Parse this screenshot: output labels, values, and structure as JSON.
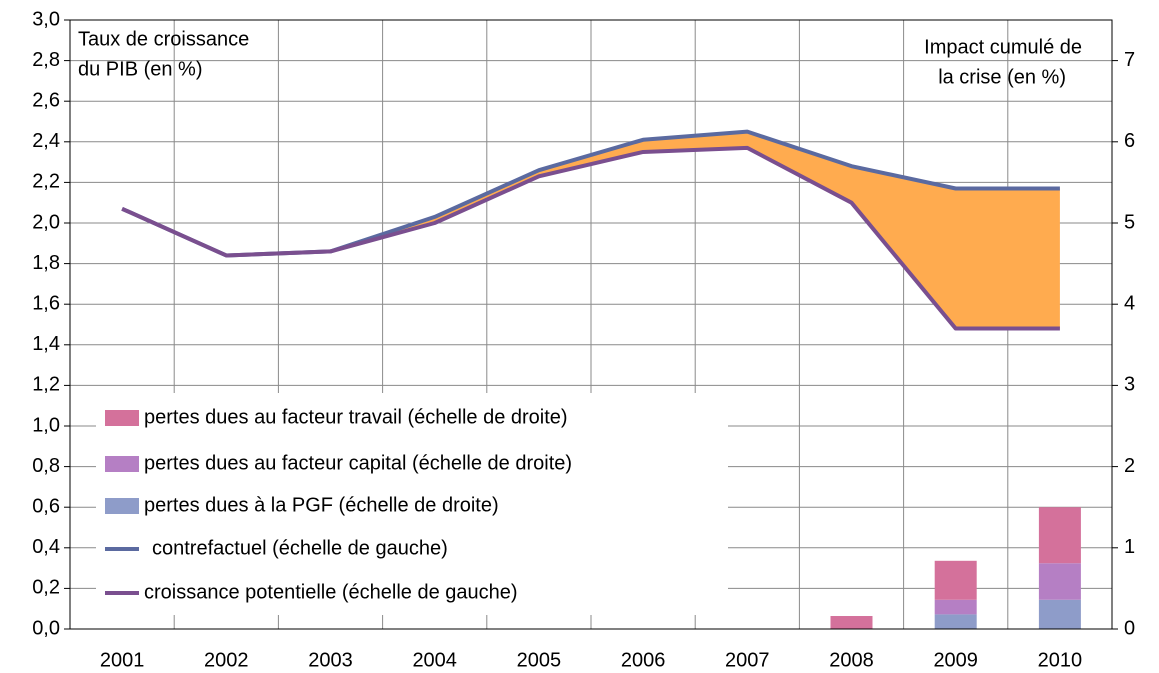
{
  "chart_data": {
    "type": "combo",
    "y_label": [
      "Taux de croissance",
      "du PIB (en %)"
    ],
    "y2_label": [
      "Impact cumulé de",
      "la crise (en %)"
    ],
    "categories": [
      "2001",
      "2002",
      "2003",
      "2004",
      "2005",
      "2006",
      "2007",
      "2008",
      "2009",
      "2010"
    ],
    "series": [
      {
        "name": "pertes dues au facteur travail (échelle de droite)",
        "type": "bar",
        "axis": "y2",
        "color": "#d4719b",
        "values": [
          null,
          null,
          null,
          null,
          null,
          null,
          null,
          0.16,
          0.48,
          0.69
        ]
      },
      {
        "name": "pertes dues au facteur capital (échelle de droite)",
        "type": "bar",
        "axis": "y2",
        "color": "#b57fc4",
        "values": [
          null,
          null,
          null,
          null,
          null,
          null,
          null,
          0,
          0.18,
          0.45
        ]
      },
      {
        "name": "pertes dues à la PGF (échelle de droite)",
        "type": "bar",
        "axis": "y2",
        "color": "#8e9cc9",
        "values": [
          null,
          null,
          null,
          null,
          null,
          null,
          null,
          0,
          0.18,
          0.36
        ]
      },
      {
        "name": "contrefactuel (échelle de gauche)",
        "type": "line",
        "color": "#5b6aa0",
        "values": [
          2.07,
          1.84,
          1.86,
          2.03,
          2.26,
          2.41,
          2.45,
          2.28,
          2.17,
          2.17
        ]
      },
      {
        "name": "croissance potentielle (échelle de gauche)",
        "type": "line",
        "color": "#7a4f8f",
        "values": [
          2.07,
          1.84,
          1.86,
          2.0,
          2.23,
          2.35,
          2.37,
          2.1,
          1.48,
          1.48
        ]
      }
    ],
    "fill_between_color": "#ffab4f",
    "ylim": [
      0,
      3
    ],
    "yticks": [
      {
        "value": 0,
        "label": "0,0"
      },
      {
        "value": 0.2,
        "label": "0,2"
      },
      {
        "value": 0.4,
        "label": "0,4"
      },
      {
        "value": 0.6,
        "label": "0,6"
      },
      {
        "value": 0.8,
        "label": "0,8"
      },
      {
        "value": 1,
        "label": "1,0"
      },
      {
        "value": 1.2,
        "label": "1,2"
      },
      {
        "value": 1.4,
        "label": "1,4"
      },
      {
        "value": 1.6,
        "label": "1,6"
      },
      {
        "value": 1.8,
        "label": "1,8"
      },
      {
        "value": 2,
        "label": "2,0"
      },
      {
        "value": 2.2,
        "label": "2,2"
      },
      {
        "value": 2.4,
        "label": "2,4"
      },
      {
        "value": 2.6,
        "label": "2,6"
      },
      {
        "value": 2.8,
        "label": "2,8"
      },
      {
        "value": 3,
        "label": "3,0"
      }
    ],
    "y2lim": [
      0,
      7.5
    ],
    "y2ticks": [
      0,
      1,
      2,
      3,
      4,
      5,
      6,
      7
    ],
    "grid": true
  }
}
